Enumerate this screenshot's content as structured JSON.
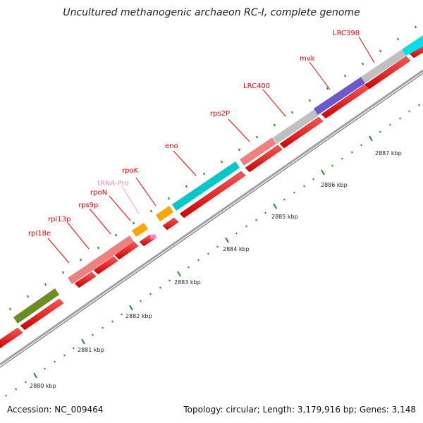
{
  "title": "Uncultured methanogenic archaeon RC-I, complete genome",
  "accession": "Accession: NC_009464",
  "summary": "Topology: circular; Length: 3,179,916 bp; Genes: 3,148",
  "kbp_ticks": [
    "2880 kbp",
    "2881 kbp",
    "2882 kbp",
    "2883 kbp",
    "2884 kbp",
    "2885 kbp",
    "2886 kbp",
    "2887 kbp"
  ],
  "gene_labels": [
    "rpl18e",
    "rpl13p",
    "rps9p",
    "rpoN",
    "tRNA-Pro",
    "rpoK",
    "eno",
    "rps2P",
    "LRC400",
    "mvk",
    "LRC398"
  ],
  "colors": {
    "cds": "#ff0000",
    "backbone": "#999999",
    "label_red": "#ff0000",
    "label_pink": "#ff8fb0",
    "ribosomal": "#f08080",
    "rna_pol": "#ffa500",
    "enolase": "#00c8c8",
    "kinase": "#6a5acd",
    "grey_gene": "#c0c0c0",
    "green_gene": "#6b8e23",
    "tick": "#2e8b2e"
  }
}
